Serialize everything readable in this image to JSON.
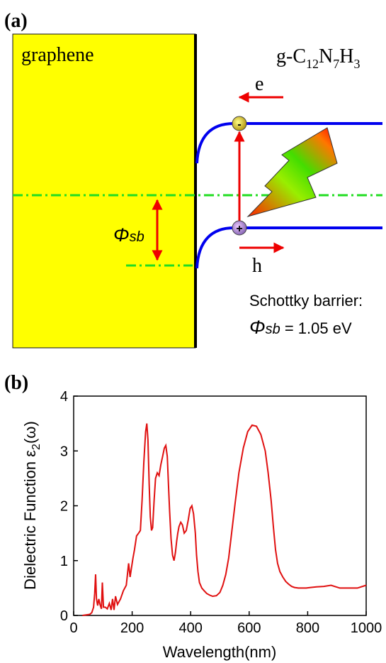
{
  "panel_a": {
    "label": "(a)",
    "graphene_label": "graphene",
    "material": {
      "prefix": "g-C",
      "sub1": "12",
      "n": "N",
      "sub2": "7",
      "h": "H",
      "sub3": "3"
    },
    "electron_label": "e",
    "hole_label": "h",
    "electron_charge": "-",
    "hole_charge": "+",
    "barrier_symbol": "Φ",
    "barrier_subscript": "sb",
    "caption_line1": "Schottky barrier:",
    "caption_value": " = 1.05 eV",
    "colors": {
      "graphene": "#ffff00",
      "band": "#0000ee",
      "fermi": "#22dd22",
      "arrow": "#ee0000"
    }
  },
  "panel_b": {
    "label": "(b)"
  },
  "chart_data": {
    "type": "line",
    "title": "",
    "xlabel": "Wavelength(nm)",
    "ylabel_main": "Dielectric Function ε",
    "ylabel_sub": "2",
    "ylabel_tail": "(ω)",
    "xlim": [
      0,
      1000
    ],
    "ylim": [
      0,
      4
    ],
    "xticks": [
      0,
      200,
      400,
      600,
      800,
      1000
    ],
    "yticks": [
      0,
      1,
      2,
      3,
      4
    ],
    "grid": false,
    "line_color": "#e01010",
    "series": [
      {
        "x": [
          30,
          55,
          62,
          68,
          72,
          75,
          78,
          82,
          86,
          90,
          95,
          98,
          102,
          108,
          115,
          122,
          128,
          133,
          138,
          143,
          150,
          160,
          170,
          180,
          188,
          193,
          197,
          203,
          208,
          215,
          222,
          228,
          234,
          240,
          246,
          250,
          254,
          258,
          262,
          266,
          270,
          275,
          280,
          286,
          292,
          298,
          304,
          310,
          315,
          320,
          324,
          328,
          333,
          338,
          343,
          348,
          352,
          356,
          360,
          366,
          372,
          378,
          385,
          392,
          398,
          404,
          410,
          416,
          420,
          425,
          430,
          438,
          446,
          455,
          465,
          475,
          488,
          500,
          510,
          520,
          530,
          540,
          552,
          565,
          580,
          595,
          610,
          625,
          640,
          655,
          665,
          675,
          683,
          690,
          697,
          705,
          715,
          725,
          735,
          745,
          755,
          768,
          780,
          795,
          810,
          830,
          855,
          880,
          910,
          940,
          970,
          1000
        ],
        "y": [
          0,
          0.02,
          0.05,
          0.15,
          0.4,
          0.75,
          0.3,
          0.18,
          0.3,
          0.2,
          0.12,
          0.6,
          0.15,
          0.15,
          0.12,
          0.22,
          0.1,
          0.3,
          0.1,
          0.35,
          0.2,
          0.3,
          0.45,
          0.55,
          0.95,
          0.7,
          0.85,
          1.05,
          1.2,
          1.45,
          1.5,
          1.55,
          2.1,
          2.8,
          3.35,
          3.5,
          3.2,
          2.4,
          1.8,
          1.55,
          1.6,
          2.1,
          2.5,
          2.6,
          2.55,
          2.75,
          2.9,
          3.05,
          3.1,
          2.9,
          2.4,
          1.9,
          1.4,
          1.1,
          1.0,
          1.15,
          1.35,
          1.5,
          1.62,
          1.7,
          1.65,
          1.5,
          1.55,
          1.75,
          1.95,
          2.0,
          1.85,
          1.5,
          1.1,
          0.8,
          0.6,
          0.5,
          0.45,
          0.4,
          0.37,
          0.35,
          0.36,
          0.42,
          0.55,
          0.75,
          1.05,
          1.5,
          2.05,
          2.6,
          3.05,
          3.35,
          3.47,
          3.45,
          3.3,
          3.0,
          2.6,
          2.1,
          1.6,
          1.2,
          0.95,
          0.8,
          0.7,
          0.62,
          0.57,
          0.53,
          0.51,
          0.5,
          0.5,
          0.5,
          0.51,
          0.52,
          0.53,
          0.55,
          0.5,
          0.5,
          0.5,
          0.55
        ]
      }
    ]
  }
}
